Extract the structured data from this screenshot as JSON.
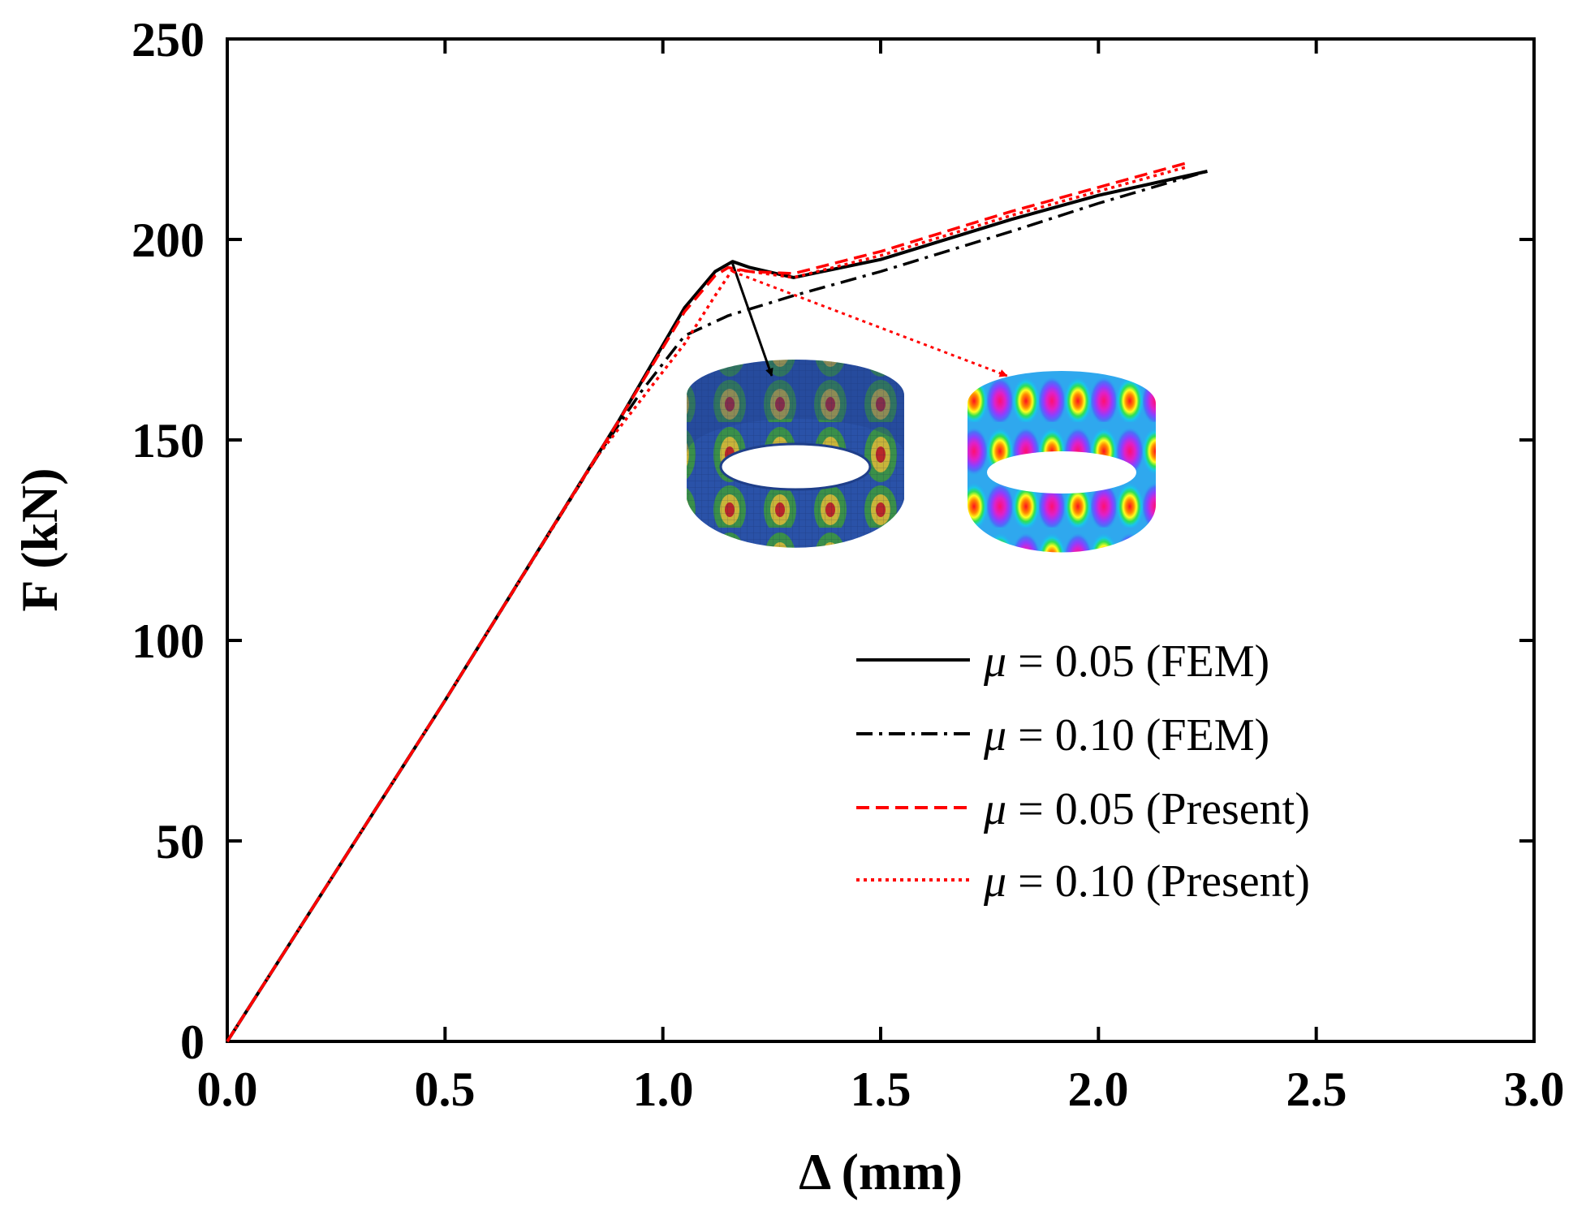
{
  "chart_data": {
    "type": "line",
    "title": "",
    "xlabel": "Δ (mm)",
    "ylabel": "F (kN)",
    "xlim": [
      0,
      3.0
    ],
    "ylim": [
      0,
      250
    ],
    "xticks": [
      "0.0",
      "0.5",
      "1.0",
      "1.5",
      "2.0",
      "2.5",
      "3.0"
    ],
    "yticks": [
      "0",
      "50",
      "100",
      "150",
      "200",
      "250"
    ],
    "grid": false,
    "legend_position": "lower-right",
    "series": [
      {
        "name": "μ = 0.05 (FEM)",
        "mu": "μ",
        "label_rest": " = 0.05 (FEM)",
        "color": "#000000",
        "style": "solid",
        "x": [
          0,
          0.5,
          0.9,
          1.05,
          1.12,
          1.16,
          1.2,
          1.3,
          1.5,
          1.8,
          2.0,
          2.25
        ],
        "y": [
          0,
          85,
          155,
          183,
          192,
          194.5,
          193,
          190.5,
          195,
          205,
          211,
          217
        ]
      },
      {
        "name": "μ = 0.10 (FEM)",
        "mu": "μ",
        "label_rest": " = 0.10 (FEM)",
        "color": "#000000",
        "style": "dashdot",
        "x": [
          0,
          0.5,
          0.85,
          0.95,
          1.05,
          1.15,
          1.3,
          1.5,
          1.8,
          2.0,
          2.25
        ],
        "y": [
          0,
          85,
          146,
          162,
          176,
          181,
          186,
          192,
          202,
          209,
          217
        ]
      },
      {
        "name": "μ = 0.05 (Present)",
        "mu": "μ",
        "label_rest": " = 0.05 (Present)",
        "color": "#ff0000",
        "style": "dashed",
        "x": [
          0,
          0.5,
          0.9,
          1.05,
          1.12,
          1.15,
          1.2,
          1.3,
          1.5,
          1.8,
          2.0,
          2.2
        ],
        "y": [
          0,
          85,
          155,
          182,
          191,
          193,
          192,
          191.5,
          197,
          207,
          213,
          219
        ]
      },
      {
        "name": "μ = 0.10 (Present)",
        "mu": "μ",
        "label_rest": " = 0.10 (Present)",
        "color": "#ff0000",
        "style": "dotted",
        "x": [
          0,
          0.5,
          0.85,
          0.95,
          1.05,
          1.12,
          1.16,
          1.2,
          1.3,
          1.5,
          1.8,
          2.0,
          2.2
        ],
        "y": [
          0,
          85,
          146,
          160,
          174,
          186,
          192.5,
          192,
          190.5,
          196,
          206,
          212,
          218
        ]
      }
    ],
    "annotations": [
      {
        "type": "arrow",
        "color": "#000000",
        "style": "solid",
        "from": [
          1.16,
          194
        ],
        "to": [
          1.25,
          166
        ],
        "target": "FEM buckling mode inset"
      },
      {
        "type": "arrow",
        "color": "#ff0000",
        "style": "dotted",
        "from": [
          1.16,
          192
        ],
        "to": [
          1.79,
          166
        ],
        "target": "Present buckling mode inset"
      }
    ]
  }
}
